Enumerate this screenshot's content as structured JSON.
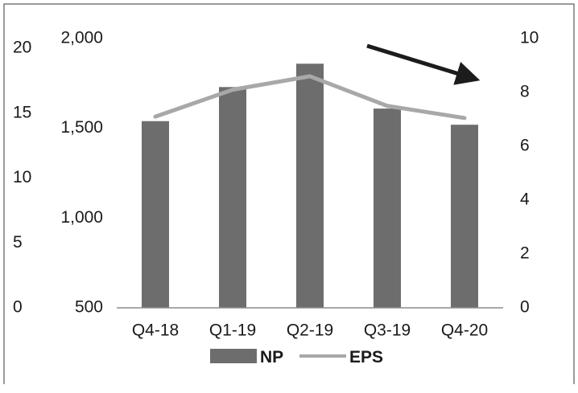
{
  "chart_data": {
    "type": "bar",
    "categories": [
      "Q4-18",
      "Q1-19",
      "Q2-19",
      "Q3-19",
      "Q4-20"
    ],
    "series": [
      {
        "name": "NP",
        "type": "bar",
        "axis": "left-inner",
        "values": [
          1540,
          1730,
          1860,
          1610,
          1520
        ]
      },
      {
        "name": "EPS",
        "type": "line",
        "axis": "right",
        "values": [
          7.1,
          8.1,
          8.6,
          7.5,
          7.05
        ]
      }
    ],
    "axes": {
      "left_outer": {
        "ticks": [
          "0",
          "5",
          "10",
          "15",
          "20"
        ]
      },
      "left_inner": {
        "ylim": [
          500,
          2000
        ],
        "ticks": [
          "500",
          "1,000",
          "1,500",
          "2,000"
        ]
      },
      "right": {
        "ylim": [
          0,
          10
        ],
        "ticks": [
          "0",
          "2",
          "4",
          "6",
          "8",
          "10"
        ]
      }
    },
    "legend": {
      "position": "bottom",
      "entries": [
        "NP",
        "EPS"
      ]
    },
    "grid": false,
    "annotation": "downward-arrow",
    "colors": {
      "bar": "#6d6d6d",
      "line": "#a6a8aa",
      "arrow": "#1c1c1c",
      "axis": "#8c8c8c",
      "frame": "#7a7a7a"
    }
  }
}
